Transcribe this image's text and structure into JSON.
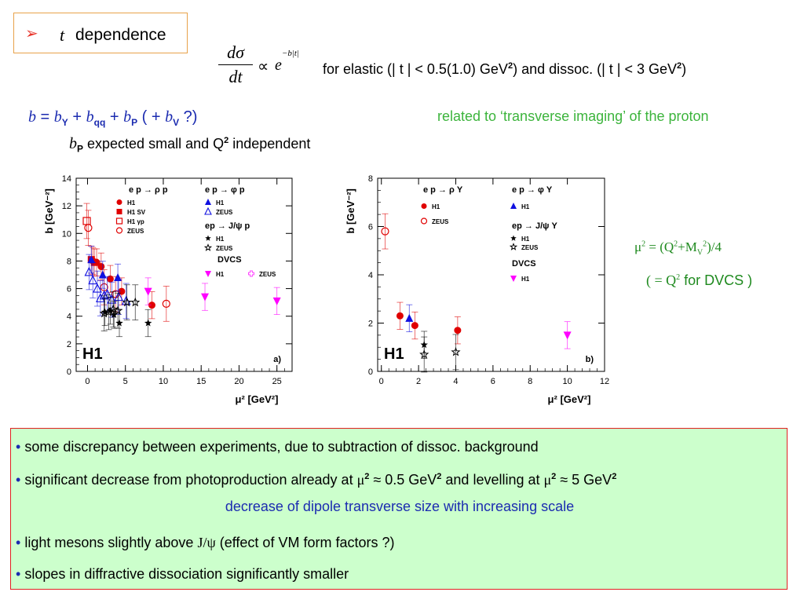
{
  "title": {
    "arrow": "➢",
    "t": "t",
    "label": "dependence"
  },
  "formula": {
    "num": "dσ",
    "den": "dt",
    "prop": "∝",
    "exp_base": "e",
    "exp_power": "−b|t|"
  },
  "conditions": {
    "part1": "for elastic (| t | < 0.5(1.0) GeV",
    "sup1": "2",
    "part2": ") and dissoc. (| t | < 3 GeV",
    "sup2": "2",
    "part3": ")"
  },
  "b_eq": {
    "b": "b",
    "eq": " = ",
    "b1": "b",
    "s1": "Y",
    "plus1": " + ",
    "b2": "b",
    "s2": "qq",
    "plus2": " + ",
    "b3": "b",
    "s3": "P",
    "rest1": " ( + ",
    "b4": "b",
    "s4": "V",
    "rest2": " ?)"
  },
  "bp_line": {
    "b": "b",
    "sub": "P",
    "text": " expected small and Q",
    "sup": "2",
    "text2": " independent"
  },
  "related": "related to ‘transverse imaging’ of the proton",
  "mu_eq": {
    "a": "μ",
    "a_sup": "2",
    "b": " = (Q",
    "b_sup": "2",
    "c": "+M",
    "c_sub": "V",
    "c_sup": "2",
    "d": ")/4"
  },
  "dvcs_eq": {
    "a": "( = Q",
    "a_sup": "2",
    "b": " for DVCS )"
  },
  "bullets": {
    "b1": "some discrepancy between experiments, due to subtraction of dissoc. background",
    "b2a": "significant decrease from photoproduction already at ",
    "b2_mu1": "μ",
    "b2_sup1": "2",
    "b2b": " ≈ 0.5 GeV",
    "b2_sup2": "2",
    "b2c": "  and levelling at ",
    "b2_mu2": "μ",
    "b2_sup3": "2",
    "b2d": " ≈ 5 GeV",
    "b2_sup4": "2",
    "b2_blue": "decrease of dipole transverse size with increasing scale",
    "b3a": "light mesons slightly above ",
    "b3_jpsi": "J/ψ",
    "b3b": "    (effect of VM form factors ?)",
    "b4": "slopes in diffractive dissociation significantly smaller",
    "dot": "•"
  },
  "chart_data": [
    {
      "type": "scatter",
      "panel_tag": "a)",
      "logo": "H1",
      "xlabel": "μ² [GeV²]",
      "ylabel": "b [GeV⁻²]",
      "xlim": [
        -1.5,
        27
      ],
      "ylim": [
        0,
        14
      ],
      "xticks": [
        0,
        5,
        10,
        15,
        20,
        25
      ],
      "yticks": [
        0,
        2,
        4,
        6,
        8,
        10,
        12,
        14
      ],
      "legend_headers": [
        "e p → ρ p",
        "e p → φ p",
        "ep → J/ψ p",
        "DVCS"
      ],
      "series": [
        {
          "name": "H1",
          "group": "e p → ρ p",
          "marker": "filled-circle",
          "color": "#e00000",
          "points": [
            [
              0.7,
              8.0
            ],
            [
              1.2,
              7.9
            ],
            [
              1.8,
              7.6
            ],
            [
              3.0,
              6.7
            ],
            [
              4.5,
              5.8
            ],
            [
              8.5,
              4.8
            ]
          ]
        },
        {
          "name": "H1 SV",
          "group": "e p → ρ p",
          "marker": "filled-square",
          "color": "#e00000",
          "points": [
            [
              0.5,
              8.1
            ],
            [
              0.9,
              7.9
            ]
          ]
        },
        {
          "name": "H1 γp",
          "group": "e p → ρ p",
          "marker": "open-square",
          "color": "#e00000",
          "points": [
            [
              -0.1,
              10.9
            ]
          ]
        },
        {
          "name": "ZEUS",
          "group": "e p → ρ p",
          "marker": "open-circle",
          "color": "#e00000",
          "points": [
            [
              0.1,
              10.4
            ],
            [
              2.2,
              6.1
            ],
            [
              3.7,
              5.6
            ],
            [
              10.4,
              4.9
            ]
          ]
        },
        {
          "name": "H1",
          "group": "e p → φ p",
          "marker": "filled-triangle",
          "color": "#1010e0",
          "points": [
            [
              0.5,
              8.1
            ],
            [
              2.0,
              7.0
            ],
            [
              4.0,
              6.8
            ]
          ]
        },
        {
          "name": "ZEUS",
          "group": "e p → φ p",
          "marker": "open-triangle",
          "color": "#1010e0",
          "points": [
            [
              0.2,
              7.2
            ],
            [
              0.7,
              6.6
            ],
            [
              1.3,
              6.0
            ],
            [
              1.7,
              5.3
            ],
            [
              2.2,
              5.5
            ],
            [
              2.6,
              5.6
            ],
            [
              3.2,
              5.2
            ],
            [
              4.1,
              5.4
            ],
            [
              5.1,
              5.1
            ]
          ]
        },
        {
          "name": "H1",
          "group": "ep → J/ψ p",
          "marker": "filled-star",
          "color": "#000000",
          "points": [
            [
              2.3,
              4.3
            ],
            [
              3.0,
              4.4
            ],
            [
              3.5,
              4.1
            ],
            [
              4.2,
              3.5
            ],
            [
              8.0,
              3.5
            ]
          ]
        },
        {
          "name": "ZEUS",
          "group": "ep → J/ψ p",
          "marker": "open-star",
          "color": "#000000",
          "points": [
            [
              2.2,
              4.2
            ],
            [
              2.8,
              4.3
            ],
            [
              3.4,
              4.5
            ],
            [
              4.0,
              4.4
            ],
            [
              5.2,
              5.0
            ],
            [
              6.3,
              5.0
            ]
          ]
        },
        {
          "name": "H1",
          "group": "DVCS",
          "marker": "filled-down-triangle",
          "color": "#ff00ff",
          "points": [
            [
              8.0,
              5.8
            ],
            [
              15.5,
              5.4
            ],
            [
              25.0,
              5.1
            ]
          ]
        },
        {
          "name": "ZEUS",
          "group": "DVCS",
          "marker": "open-cross",
          "color": "#ff44ff",
          "points": []
        }
      ]
    },
    {
      "type": "scatter",
      "panel_tag": "b)",
      "logo": "H1",
      "xlabel": "μ² [GeV²]",
      "ylabel": "b [GeV⁻²]",
      "xlim": [
        -0.2,
        12
      ],
      "ylim": [
        0,
        8
      ],
      "xticks": [
        0,
        2,
        4,
        6,
        8,
        10,
        12
      ],
      "yticks": [
        0,
        2,
        4,
        6,
        8
      ],
      "legend_headers": [
        "e p → ρ Y",
        "e p → φ Y",
        "ep → J/ψ Y",
        "DVCS"
      ],
      "series": [
        {
          "name": "H1",
          "group": "e p → ρ Y",
          "marker": "filled-circle",
          "color": "#e00000",
          "points": [
            [
              1.0,
              2.3
            ],
            [
              1.8,
              1.9
            ],
            [
              4.1,
              1.7
            ]
          ]
        },
        {
          "name": "ZEUS",
          "group": "e p → ρ Y",
          "marker": "open-circle",
          "color": "#e00000",
          "points": [
            [
              0.2,
              5.8
            ]
          ]
        },
        {
          "name": "H1",
          "group": "e p → φ Y",
          "marker": "filled-triangle",
          "color": "#1010e0",
          "points": [
            [
              1.5,
              2.2
            ]
          ]
        },
        {
          "name": "H1",
          "group": "ep → J/ψ Y",
          "marker": "filled-star",
          "color": "#000000",
          "points": [
            [
              2.3,
              1.1
            ]
          ]
        },
        {
          "name": "ZEUS",
          "group": "ep → J/ψ Y",
          "marker": "open-star",
          "color": "#000000",
          "points": [
            [
              2.3,
              0.7
            ],
            [
              4.0,
              0.8
            ]
          ]
        },
        {
          "name": "H1",
          "group": "DVCS",
          "marker": "filled-down-triangle",
          "color": "#ff00ff",
          "points": [
            [
              10.0,
              1.5
            ]
          ]
        }
      ]
    }
  ]
}
